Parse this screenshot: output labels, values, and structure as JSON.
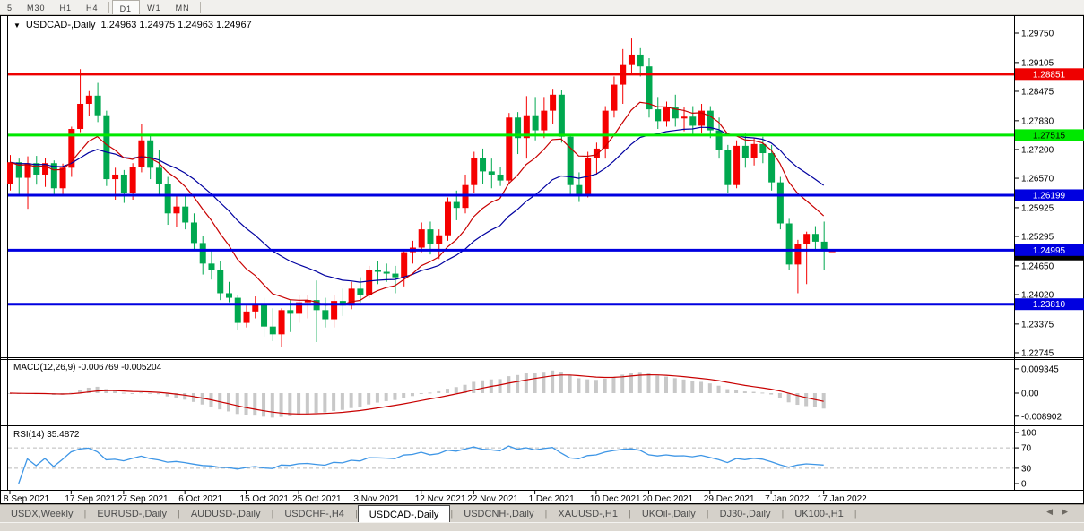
{
  "toolbar": {
    "timeframes": [
      {
        "label": "5",
        "active": false
      },
      {
        "label": "M30",
        "active": false
      },
      {
        "label": "H1",
        "active": false
      },
      {
        "label": "H4",
        "active": false
      },
      {
        "label": "D1",
        "active": true
      },
      {
        "label": "W1",
        "active": false
      },
      {
        "label": "MN",
        "active": false
      }
    ]
  },
  "chart": {
    "title_symbol": "USDCAD-,Daily",
    "title_quotes": "1.24963 1.24975 1.24963 1.24967",
    "price_axis_ticks": [
      "1.29750",
      "1.29105",
      "1.28475",
      "1.27830",
      "1.27200",
      "1.26570",
      "1.25925",
      "1.25295",
      "1.24650",
      "1.24020",
      "1.23375",
      "1.22745"
    ],
    "hlines": [
      {
        "price": 1.28851,
        "label": "1.28851",
        "color": "#ee0000",
        "text_color": "#ffffff"
      },
      {
        "price": 1.27515,
        "label": "1.27515",
        "color": "#00e800",
        "text_color": "#000000"
      },
      {
        "price": 1.26199,
        "label": "1.26199",
        "color": "#0000e0",
        "text_color": "#ffffff"
      },
      {
        "price": 1.24995,
        "label": "1.24995",
        "color": "#0000e0",
        "text_color": "#ffffff"
      },
      {
        "price": 1.2381,
        "label": "1.23810",
        "color": "#0000e0",
        "text_color": "#ffffff"
      }
    ],
    "current_price": {
      "price": 1.24967,
      "label": "1.24967",
      "bg": "#000000",
      "text_color": "#ffffff"
    },
    "colors": {
      "bull": "#f50000",
      "bear": "#00a84f",
      "ma_fast": "#c80000",
      "ma_slow": "#0000a0",
      "background": "#ffffff",
      "border": "#000000"
    }
  },
  "chart_data": {
    "type": "candlestick",
    "symbol": "USDCAD",
    "timeframe": "Daily",
    "x_ticks": [
      {
        "label": "8 Sep 2021",
        "i": 0
      },
      {
        "label": "17 Sep 2021",
        "i": 7
      },
      {
        "label": "27 Sep 2021",
        "i": 13
      },
      {
        "label": "6 Oct 2021",
        "i": 20
      },
      {
        "label": "15 Oct 2021",
        "i": 27
      },
      {
        "label": "25 Oct 2021",
        "i": 33
      },
      {
        "label": "3 Nov 2021",
        "i": 40
      },
      {
        "label": "12 Nov 2021",
        "i": 47
      },
      {
        "label": "22 Nov 2021",
        "i": 53
      },
      {
        "label": "1 Dec 2021",
        "i": 60
      },
      {
        "label": "10 Dec 2021",
        "i": 67
      },
      {
        "label": "20 Dec 2021",
        "i": 73
      },
      {
        "label": "29 Dec 2021",
        "i": 80
      },
      {
        "label": "7 Jan 2022",
        "i": 87
      },
      {
        "label": "17 Jan 2022",
        "i": 93
      }
    ],
    "ohlc": [
      [
        "8 Sep",
        1.2645,
        1.2708,
        1.263,
        1.2692
      ],
      [
        "9 Sep",
        1.2692,
        1.27,
        1.2622,
        1.2658
      ],
      [
        "10 Sep",
        1.2658,
        1.2705,
        1.259,
        1.269
      ],
      [
        "13 Sep",
        1.269,
        1.2706,
        1.2643,
        1.2665
      ],
      [
        "14 Sep",
        1.2665,
        1.2702,
        1.2638,
        1.269
      ],
      [
        "15 Sep",
        1.269,
        1.2696,
        1.2617,
        1.2635
      ],
      [
        "16 Sep",
        1.2635,
        1.2689,
        1.262,
        1.268
      ],
      [
        "17 Sep",
        1.268,
        1.277,
        1.266,
        1.2765
      ],
      [
        "20 Sep",
        1.2765,
        1.2896,
        1.2758,
        1.282
      ],
      [
        "21 Sep",
        1.282,
        1.2848,
        1.2793,
        1.2838
      ],
      [
        "22 Sep",
        1.2838,
        1.2866,
        1.278,
        1.2795
      ],
      [
        "23 Sep",
        1.2795,
        1.2805,
        1.264,
        1.2655
      ],
      [
        "24 Sep",
        1.2655,
        1.268,
        1.261,
        1.2665
      ],
      [
        "27 Sep",
        1.2665,
        1.2675,
        1.2603,
        1.2625
      ],
      [
        "28 Sep",
        1.2625,
        1.269,
        1.261,
        1.2682
      ],
      [
        "29 Sep",
        1.2682,
        1.2775,
        1.267,
        1.274
      ],
      [
        "30 Sep",
        1.274,
        1.2752,
        1.2655,
        1.268
      ],
      [
        "1 Oct",
        1.268,
        1.2718,
        1.262,
        1.2645
      ],
      [
        "4 Oct",
        1.2645,
        1.266,
        1.2555,
        1.258
      ],
      [
        "5 Oct",
        1.258,
        1.2622,
        1.255,
        1.2595
      ],
      [
        "6 Oct",
        1.2595,
        1.262,
        1.2545,
        1.256
      ],
      [
        "7 Oct",
        1.256,
        1.258,
        1.25,
        1.2515
      ],
      [
        "8 Oct",
        1.2515,
        1.253,
        1.2446,
        1.247
      ],
      [
        "11 Oct",
        1.247,
        1.25,
        1.2435,
        1.2455
      ],
      [
        "12 Oct",
        1.2455,
        1.2475,
        1.239,
        1.2405
      ],
      [
        "13 Oct",
        1.2405,
        1.243,
        1.2385,
        1.2395
      ],
      [
        "14 Oct",
        1.2395,
        1.2402,
        1.2325,
        1.234
      ],
      [
        "15 Oct",
        1.234,
        1.2378,
        1.233,
        1.2365
      ],
      [
        "18 Oct",
        1.2365,
        1.2398,
        1.235,
        1.238
      ],
      [
        "19 Oct",
        1.238,
        1.2395,
        1.231,
        1.2332
      ],
      [
        "20 Oct",
        1.2332,
        1.2372,
        1.23,
        1.2315
      ],
      [
        "21 Oct",
        1.2315,
        1.2372,
        1.2288,
        1.2368
      ],
      [
        "22 Oct",
        1.2368,
        1.239,
        1.232,
        1.236
      ],
      [
        "25 Oct",
        1.236,
        1.24,
        1.234,
        1.2385
      ],
      [
        "26 Oct",
        1.2385,
        1.2402,
        1.235,
        1.239
      ],
      [
        "27 Oct",
        1.239,
        1.2433,
        1.2298,
        1.2368
      ],
      [
        "28 Oct",
        1.2368,
        1.2395,
        1.233,
        1.2348
      ],
      [
        "29 Oct",
        1.2348,
        1.2402,
        1.233,
        1.2388
      ],
      [
        "1 Nov",
        1.2388,
        1.2415,
        1.2355,
        1.2378
      ],
      [
        "2 Nov",
        1.2378,
        1.243,
        1.237,
        1.2415
      ],
      [
        "3 Nov",
        1.2415,
        1.244,
        1.2385,
        1.2402
      ],
      [
        "4 Nov",
        1.2402,
        1.2465,
        1.2395,
        1.2455
      ],
      [
        "5 Nov",
        1.2455,
        1.2475,
        1.2425,
        1.2452
      ],
      [
        "8 Nov",
        1.2452,
        1.247,
        1.243,
        1.2448
      ],
      [
        "9 Nov",
        1.2448,
        1.2465,
        1.2405,
        1.244
      ],
      [
        "10 Nov",
        1.244,
        1.25,
        1.242,
        1.2495
      ],
      [
        "11 Nov",
        1.2495,
        1.252,
        1.247,
        1.2505
      ],
      [
        "12 Nov",
        1.2505,
        1.256,
        1.2495,
        1.2545
      ],
      [
        "15 Nov",
        1.2545,
        1.2562,
        1.249,
        1.2512
      ],
      [
        "16 Nov",
        1.2512,
        1.2545,
        1.248,
        1.2532
      ],
      [
        "17 Nov",
        1.2532,
        1.2615,
        1.252,
        1.2605
      ],
      [
        "18 Nov",
        1.2605,
        1.263,
        1.2565,
        1.2592
      ],
      [
        "19 Nov",
        1.2592,
        1.2665,
        1.258,
        1.2642
      ],
      [
        "22 Nov",
        1.2642,
        1.2715,
        1.2625,
        1.2702
      ],
      [
        "23 Nov",
        1.2702,
        1.2722,
        1.2645,
        1.2672
      ],
      [
        "24 Nov",
        1.2672,
        1.27,
        1.2635,
        1.2665
      ],
      [
        "25 Nov",
        1.2665,
        1.2682,
        1.264,
        1.2652
      ],
      [
        "26 Nov",
        1.2652,
        1.28,
        1.2645,
        1.279
      ],
      [
        "29 Nov",
        1.279,
        1.2802,
        1.271,
        1.2745
      ],
      [
        "30 Nov",
        1.2745,
        1.2837,
        1.27,
        1.2795
      ],
      [
        "1 Dec",
        1.2795,
        1.2835,
        1.274,
        1.2762
      ],
      [
        "2 Dec",
        1.2762,
        1.2835,
        1.2745,
        1.2805
      ],
      [
        "3 Dec",
        1.2805,
        1.2853,
        1.2775,
        1.284
      ],
      [
        "6 Dec",
        1.284,
        1.285,
        1.2735,
        1.2748
      ],
      [
        "7 Dec",
        1.2748,
        1.2752,
        1.262,
        1.2642
      ],
      [
        "8 Dec",
        1.2642,
        1.267,
        1.2605,
        1.2622
      ],
      [
        "9 Dec",
        1.2622,
        1.2715,
        1.2615,
        1.2702
      ],
      [
        "10 Dec",
        1.2702,
        1.2735,
        1.2665,
        1.2722
      ],
      [
        "13 Dec",
        1.2722,
        1.2815,
        1.27,
        1.2805
      ],
      [
        "14 Dec",
        1.2805,
        1.288,
        1.279,
        1.2862
      ],
      [
        "15 Dec",
        1.2862,
        1.294,
        1.282,
        1.2905
      ],
      [
        "16 Dec",
        1.2905,
        1.2965,
        1.2885,
        1.2928
      ],
      [
        "17 Dec",
        1.2928,
        1.2942,
        1.288,
        1.2902
      ],
      [
        "20 Dec",
        1.2902,
        1.292,
        1.279,
        1.2808
      ],
      [
        "21 Dec",
        1.2808,
        1.2835,
        1.2765,
        1.2782
      ],
      [
        "22 Dec",
        1.2782,
        1.2825,
        1.277,
        1.2812
      ],
      [
        "23 Dec",
        1.2812,
        1.284,
        1.277,
        1.2788
      ],
      [
        "24 Dec",
        1.2788,
        1.2812,
        1.276,
        1.2792
      ],
      [
        "27 Dec",
        1.2792,
        1.2815,
        1.275,
        1.2772
      ],
      [
        "28 Dec",
        1.2772,
        1.282,
        1.2755,
        1.2805
      ],
      [
        "29 Dec",
        1.2805,
        1.2815,
        1.2745,
        1.2762
      ],
      [
        "30 Dec",
        1.2762,
        1.279,
        1.27,
        1.2718
      ],
      [
        "31 Dec",
        1.2718,
        1.273,
        1.2625,
        1.2642
      ],
      [
        "3 Jan",
        1.2642,
        1.274,
        1.2635,
        1.2728
      ],
      [
        "4 Jan",
        1.2728,
        1.2755,
        1.268,
        1.2702
      ],
      [
        "5 Jan",
        1.2702,
        1.2745,
        1.2685,
        1.2732
      ],
      [
        "6 Jan",
        1.2732,
        1.2748,
        1.269,
        1.2712
      ],
      [
        "7 Jan",
        1.2712,
        1.273,
        1.263,
        1.2648
      ],
      [
        "10 Jan",
        1.2648,
        1.266,
        1.2545,
        1.2558
      ],
      [
        "11 Jan",
        1.2558,
        1.2568,
        1.2455,
        1.2468
      ],
      [
        "12 Jan",
        1.2468,
        1.2522,
        1.2405,
        1.2512
      ],
      [
        "13 Jan",
        1.2512,
        1.254,
        1.2425,
        1.2535
      ],
      [
        "14 Jan",
        1.2535,
        1.2552,
        1.25,
        1.2518
      ],
      [
        "17 Jan",
        1.2518,
        1.2562,
        1.2455,
        1.2497
      ]
    ]
  },
  "indicators": {
    "macd": {
      "label": "MACD(12,26,9) -0.006769 -0.005204",
      "params": [
        12,
        26,
        9
      ],
      "values": [
        "-0.006769",
        "-0.005204"
      ],
      "scale_labels": [
        "0.009345",
        "0.00",
        "-0.008902"
      ],
      "histogram_color": "#c8c8c8",
      "signal_color": "#c80000"
    },
    "rsi": {
      "label": "RSI(14) 35.4872",
      "period": 14,
      "value": "35.4872",
      "scale_labels": [
        "100",
        "70",
        "30",
        "0"
      ],
      "levels": [
        70,
        30
      ],
      "line_color": "#3e96e6",
      "level_color": "#bbbbbb"
    }
  },
  "tabs": {
    "items": [
      {
        "label": "USDX,Weekly",
        "active": false
      },
      {
        "label": "EURUSD-,Daily",
        "active": false
      },
      {
        "label": "AUDUSD-,Daily",
        "active": false
      },
      {
        "label": "USDCHF-,H4",
        "active": false
      },
      {
        "label": "USDCAD-,Daily",
        "active": true
      },
      {
        "label": "USDCNH-,Daily",
        "active": false
      },
      {
        "label": "XAUUSD-,H1",
        "active": false
      },
      {
        "label": "UKOil-,Daily",
        "active": false
      },
      {
        "label": "DJ30-,Daily",
        "active": false
      },
      {
        "label": "UK100-,H1",
        "active": false
      }
    ],
    "nav_left": "◀",
    "nav_right": "▶"
  }
}
